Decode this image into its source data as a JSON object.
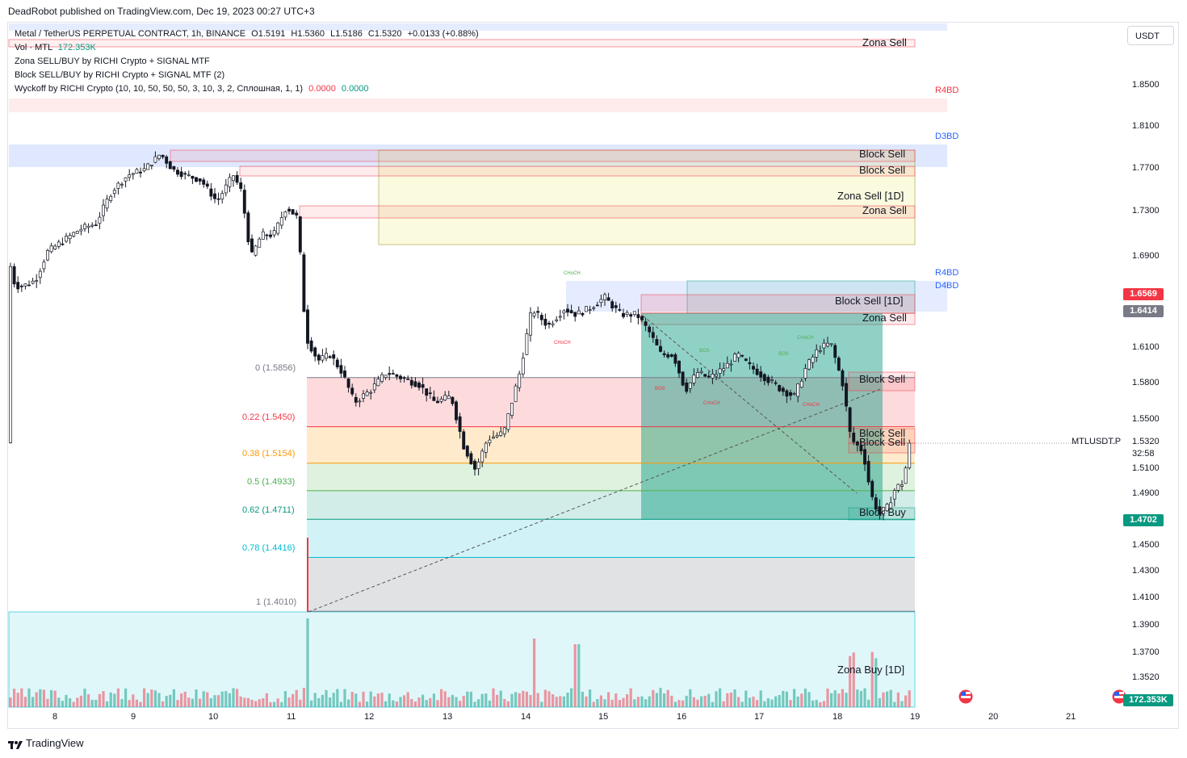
{
  "attribution": "DeadRobot published on TradingView.com, Dec 19, 2023 00:27 UTC+3",
  "currency": "USDT",
  "legend": {
    "symbol_line": "Metal / TetherUS PERPETUAL CONTRACT, 1h, BINANCE",
    "ohlc": {
      "o": "O1.5191",
      "h": "H1.5360",
      "l": "L1.5186",
      "c": "C1.5320",
      "chg": "+0.0133 (+0.88%)"
    },
    "vol_label": "Vol · MTL",
    "vol_value": "172.353K",
    "ind1": "Zona SELL/BUY by RICHI Crypto + SIGNAL MTF",
    "ind2": "Block SELL/BUY by RICHI Crypto + SIGNAL MTF (2)",
    "ind3": "Wyckoff by RICHI Crypto  (10, 10, 50, 50, 50, 3, 10, 3, 2, Сплошная, 1, 1)",
    "ind3_v1": "0.0000",
    "ind3_v2": "0.0000"
  },
  "price_axis": [
    "1.8500",
    "1.8100",
    "1.7700",
    "1.7300",
    "1.6900",
    "1.6100",
    "1.5800",
    "1.5500",
    "1.5320",
    "1.5100",
    "1.4900",
    "1.4500",
    "1.4300",
    "1.4100",
    "1.3900",
    "1.3700",
    "1.3520"
  ],
  "countdown": "32:58",
  "symbol_tag": "MTLUSDT.P",
  "price_tags": [
    {
      "value": "1.6569",
      "color": "#f23645"
    },
    {
      "value": "1.6414",
      "color": "#787b86"
    },
    {
      "value": "1.4702",
      "color": "#089981"
    },
    {
      "value": "172.353K",
      "color": "#089981"
    }
  ],
  "time_axis": [
    "8",
    "9",
    "10",
    "11",
    "12",
    "13",
    "14",
    "15",
    "16",
    "17",
    "18",
    "19",
    "20",
    "21"
  ],
  "zone_labels": [
    "Zona Sell",
    "Block Sell",
    "Block Sell",
    "Zona Sell [1D]",
    "Zona Sell",
    "Block Sell [1D]",
    "Zona Sell",
    "Block Sell",
    "Block Sell",
    "Block Sell",
    "Block Buy",
    "Zona Buy [1D]"
  ],
  "pivot_labels": [
    "R4BD",
    "D3BD",
    "R4BD",
    "D4BD"
  ],
  "fib_levels": [
    {
      "label": "0 (1.5856)",
      "price": 1.5856,
      "color": "#787b86"
    },
    {
      "label": "0.22 (1.5450)",
      "price": 1.545,
      "color": "#f23645"
    },
    {
      "label": "0.38 (1.5154)",
      "price": 1.5154,
      "color": "#ff9800"
    },
    {
      "label": "0.5 (1.4933)",
      "price": 1.4933,
      "color": "#4caf50"
    },
    {
      "label": "0.62 (1.4711)",
      "price": 1.4711,
      "color": "#089981"
    },
    {
      "label": "0.78 (1.4416)",
      "price": 1.4416,
      "color": "#00bcd4"
    },
    {
      "label": "1 (1.4010)",
      "price": 1.401,
      "color": "#787b86"
    }
  ],
  "colors": {
    "up": "#089981",
    "down": "#f23645",
    "candle": "#131722"
  },
  "footer": "TradingView"
}
